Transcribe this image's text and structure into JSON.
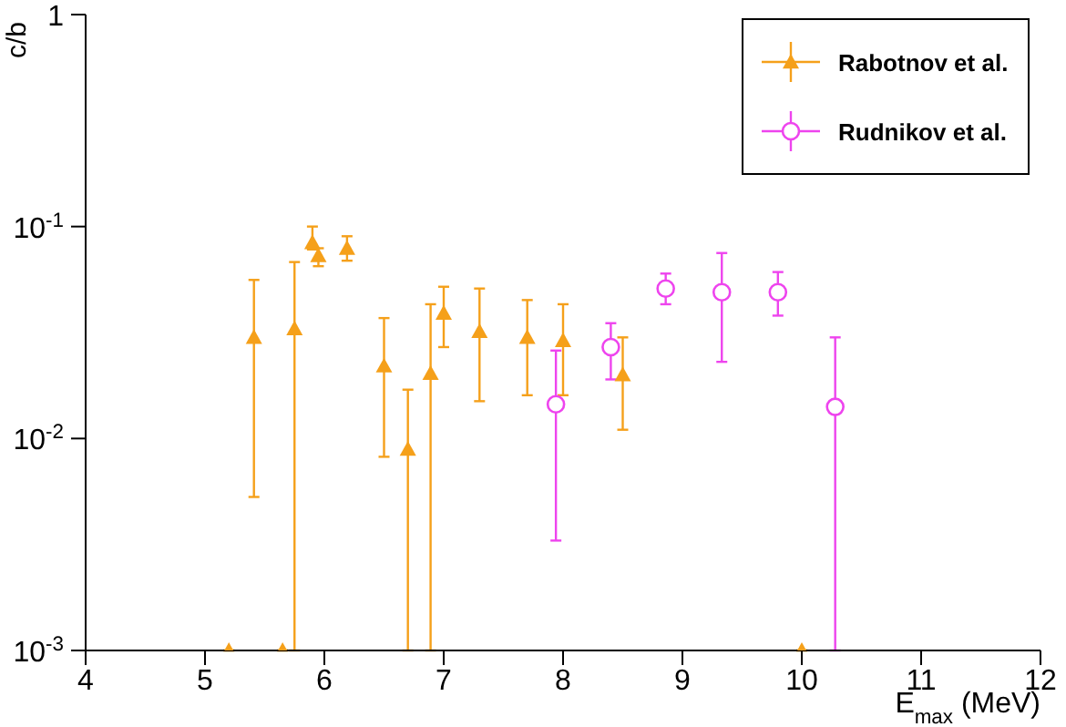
{
  "chart_data": {
    "type": "scatter",
    "xlabel": "E$_{max}$ (MeV)",
    "ylabel": "c/b",
    "log": "y",
    "legend": "top right",
    "grid": false,
    "xlim": [
      4,
      12
    ],
    "xticks": [
      4,
      5,
      6,
      7,
      8,
      9,
      10,
      11,
      12
    ],
    "ylim": [
      0.001,
      1
    ],
    "yticks": [
      {
        "value": 0.001,
        "label": "10$^{-3}$"
      },
      {
        "value": 0.01,
        "label": "10$^{-2}$"
      },
      {
        "value": 0.1,
        "label": "10$^{-1}$"
      },
      1
    ],
    "series": [
      {
        "name": "Rabotnov et al.",
        "color": "#f5a01a",
        "marker": "triangle",
        "x": [
          5.2,
          5.41,
          5.65,
          5.75,
          5.9,
          5.95,
          6.19,
          6.5,
          6.7,
          6.89,
          7.0,
          7.3,
          7.7,
          8.0,
          8.5,
          10.0
        ],
        "values": [
          0.001,
          0.03,
          0.001,
          0.033,
          0.084,
          0.073,
          0.079,
          0.022,
          0.0089,
          0.0203,
          0.039,
          0.032,
          0.03,
          0.029,
          0.02,
          0.001
        ],
        "errors": [
          null,
          [
            0.0053,
            0.056
          ],
          null,
          [
            0.001,
            0.068
          ],
          [
            0.078,
            0.1
          ],
          [
            0.065,
            0.079
          ],
          [
            0.069,
            0.09
          ],
          [
            0.0082,
            0.037
          ],
          [
            0.001,
            0.017
          ],
          [
            0.001,
            0.043
          ],
          [
            0.027,
            0.052
          ],
          [
            0.015,
            0.051
          ],
          [
            0.016,
            0.045
          ],
          [
            0.016,
            0.043
          ],
          [
            0.011,
            0.03
          ],
          null
        ]
      },
      {
        "name": "Rudnikov et al.",
        "color": "#ee44ee",
        "marker": "circle",
        "x": [
          7.94,
          8.4,
          8.86,
          9.33,
          9.8,
          10.28
        ],
        "values": [
          0.0145,
          0.027,
          0.051,
          0.049,
          0.049,
          0.0141
        ],
        "errors": [
          [
            0.0033,
            0.026
          ],
          [
            0.019,
            0.035
          ],
          [
            0.043,
            0.06
          ],
          [
            0.023,
            0.075
          ],
          [
            0.038,
            0.061
          ],
          [
            0.001,
            0.03
          ]
        ]
      }
    ]
  }
}
